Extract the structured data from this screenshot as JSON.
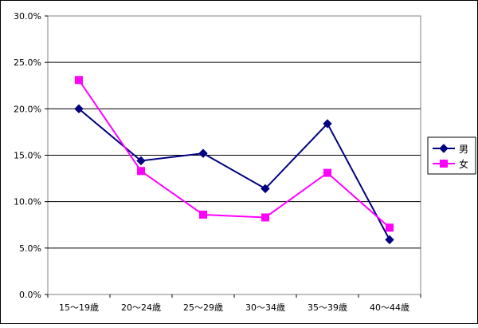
{
  "chart_data": {
    "type": "line",
    "title": "",
    "xlabel": "",
    "ylabel": "",
    "categories": [
      "15～19歳",
      "20～24歳",
      "25～29歳",
      "30～34歳",
      "35～39歳",
      "40～44歳"
    ],
    "ylim": [
      0,
      30
    ],
    "yticks": [
      "0.0%",
      "5.0%",
      "10.0%",
      "15.0%",
      "20.0%",
      "25.0%",
      "30.0%"
    ],
    "grid": true,
    "legend_position": "right",
    "series": [
      {
        "name": "男",
        "values": [
          20.0,
          14.4,
          15.2,
          11.4,
          18.4,
          5.9
        ],
        "color": "#000080",
        "marker": "diamond"
      },
      {
        "name": "女",
        "values": [
          23.1,
          13.3,
          8.6,
          8.3,
          13.1,
          7.2
        ],
        "color": "#FF00FF",
        "marker": "square"
      }
    ]
  }
}
